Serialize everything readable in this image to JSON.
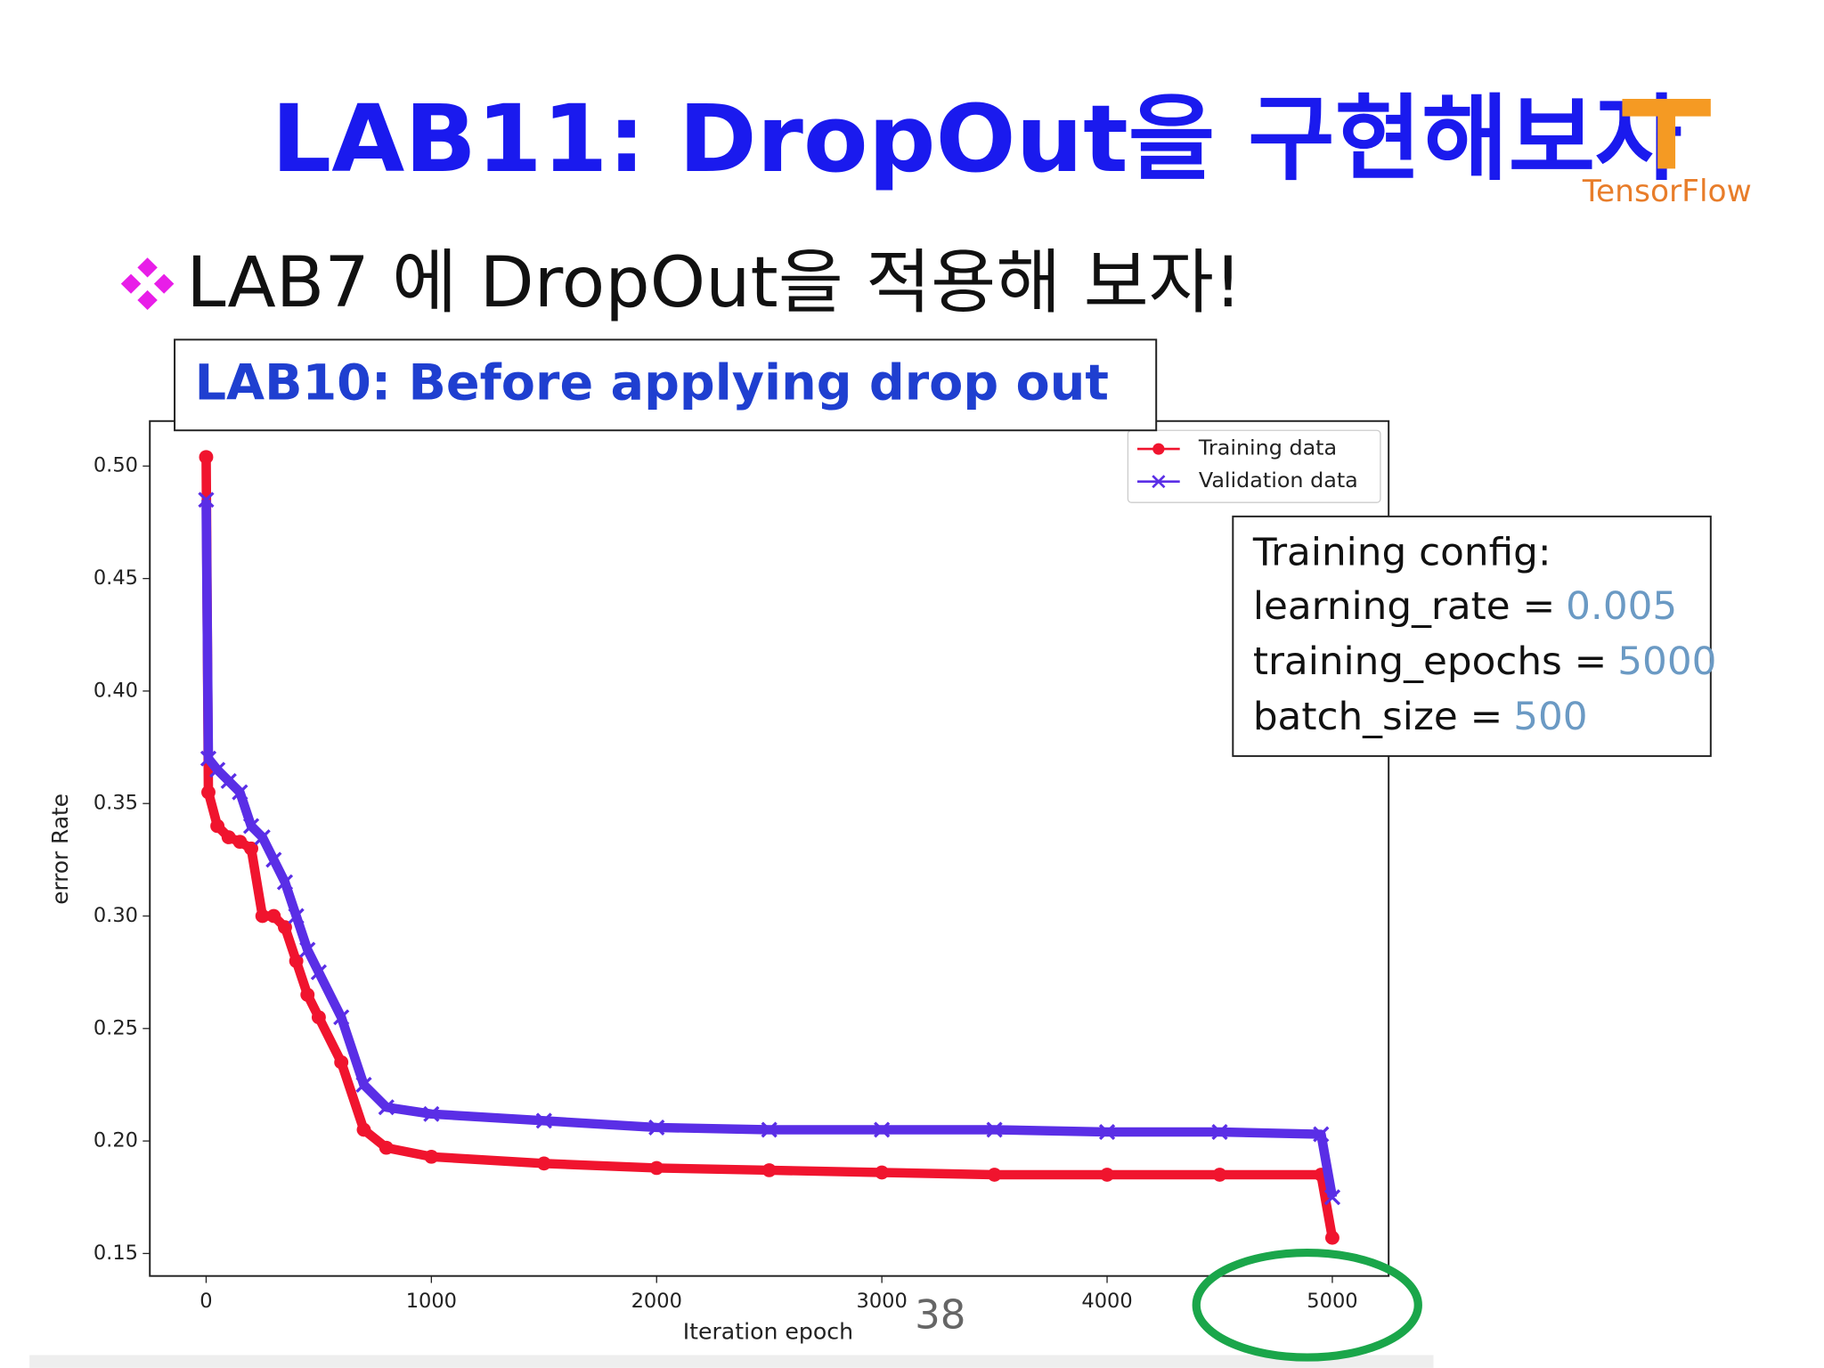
{
  "title": "LAB11: DropOut을 구현해보자",
  "logo": "TensorFlow",
  "bullet": "LAB7 에 DropOut을 적용해 보자!",
  "caption": "LAB10: Before applying drop out",
  "config": {
    "heading": "Training config:",
    "items": [
      {
        "label": "learning_rate =",
        "value": "0.005"
      },
      {
        "label": "training_epochs =",
        "value": "5000"
      },
      {
        "label": "batch_size =",
        "value": "500"
      }
    ]
  },
  "page_number": "38",
  "chart_data": {
    "type": "line",
    "xlabel": "Iteration epoch",
    "ylabel": "error Rate",
    "x": [
      0,
      10,
      50,
      100,
      150,
      200,
      250,
      300,
      350,
      400,
      450,
      500,
      600,
      700,
      800,
      1000,
      1500,
      2000,
      2500,
      3000,
      3500,
      4000,
      4500,
      4950,
      5000
    ],
    "series": [
      {
        "name": "Training data",
        "color": "#f0142e",
        "marker": "o",
        "values": [
          0.504,
          0.355,
          0.34,
          0.335,
          0.333,
          0.33,
          0.3,
          0.3,
          0.295,
          0.28,
          0.265,
          0.255,
          0.235,
          0.205,
          0.197,
          0.193,
          0.19,
          0.188,
          0.187,
          0.186,
          0.185,
          0.185,
          0.185,
          0.185,
          0.157
        ]
      },
      {
        "name": "Validation data",
        "color": "#5a2ee6",
        "marker": "x",
        "values": [
          0.485,
          0.37,
          0.365,
          0.36,
          0.355,
          0.34,
          0.335,
          0.325,
          0.315,
          0.3,
          0.285,
          0.275,
          0.255,
          0.225,
          0.215,
          0.212,
          0.209,
          0.206,
          0.205,
          0.205,
          0.205,
          0.204,
          0.204,
          0.203,
          0.175
        ]
      }
    ],
    "xlim": [
      -250,
      5250
    ],
    "ylim": [
      0.14,
      0.52
    ],
    "xticks": [
      0,
      1000,
      2000,
      3000,
      4000,
      5000
    ],
    "yticks": [
      0.15,
      {
        "value": 0.2,
        "label": "0.20"
      },
      0.25,
      {
        "value": 0.3,
        "label": "0.30"
      },
      0.35,
      {
        "value": 0.4,
        "label": "0.40"
      },
      0.45,
      {
        "value": 0.5,
        "label": "0.50"
      }
    ],
    "legend": "upper right",
    "grid": false
  }
}
